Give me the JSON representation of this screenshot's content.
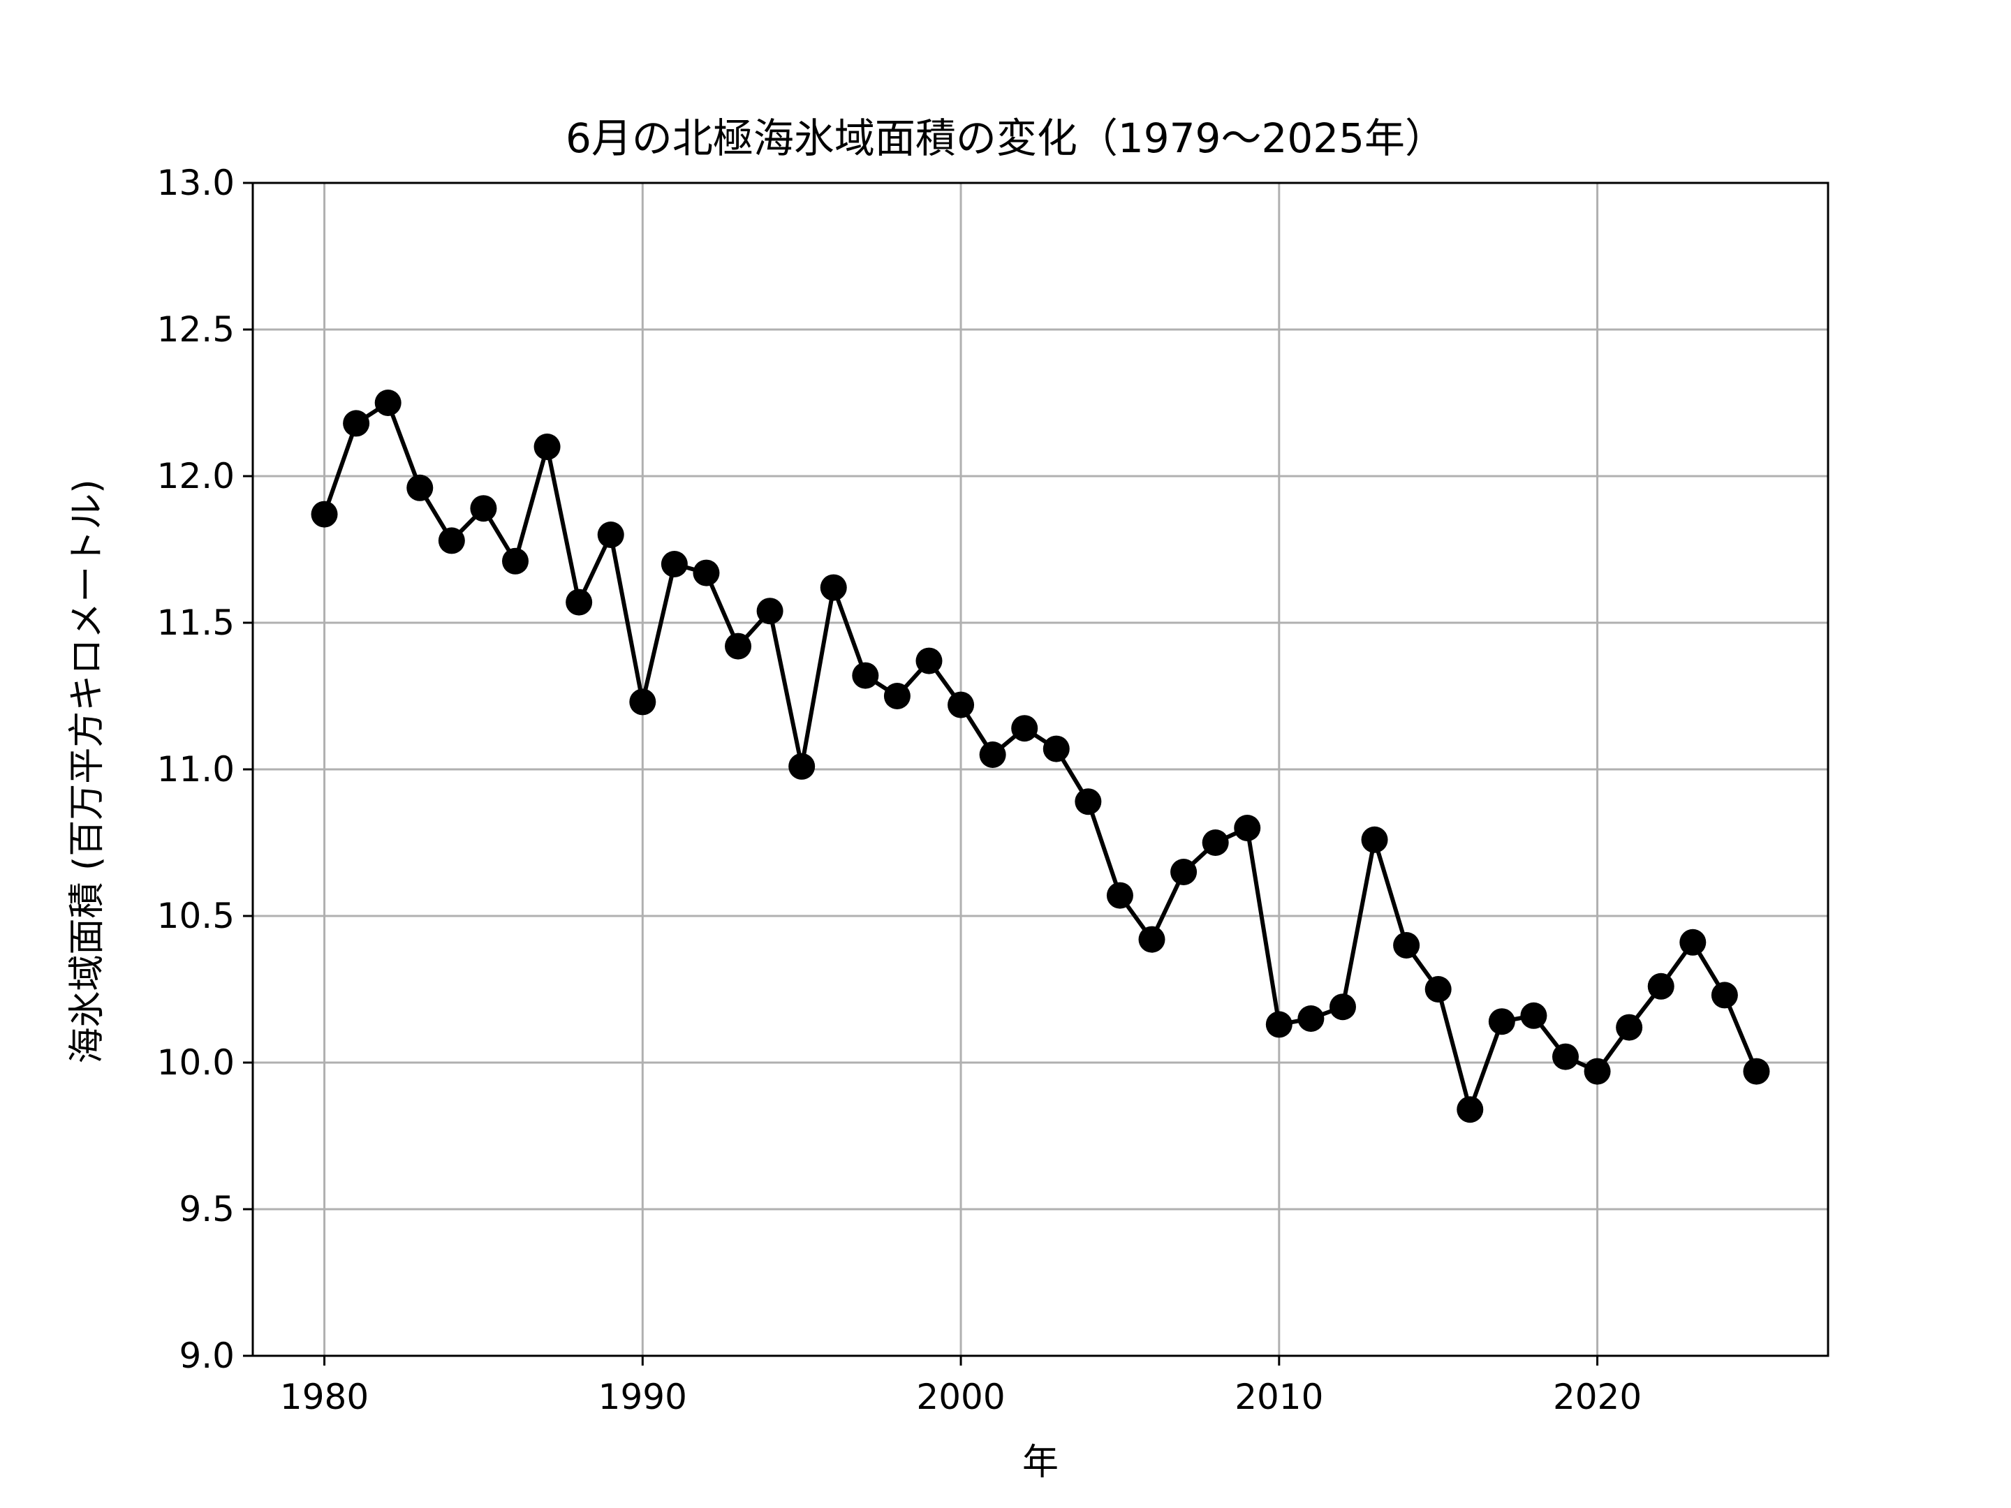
{
  "chart_data": {
    "type": "line",
    "title": "6月の北極海氷域面積の変化（1979〜2025年）",
    "xlabel": "年",
    "ylabel": "海氷域面積 (百万平方キロメートル)",
    "xlim": [
      1977.75,
      2027.25
    ],
    "ylim": [
      9.0,
      13.0
    ],
    "xticks": [
      1980,
      1990,
      2000,
      2010,
      2020
    ],
    "yticks": [
      9.0,
      9.5,
      10.0,
      10.5,
      11.0,
      11.5,
      12.0,
      12.5,
      13.0
    ],
    "ytick_labels": [
      "9.0",
      "9.5",
      "10.0",
      "10.5",
      "11.0",
      "11.5",
      "12.0",
      "12.5",
      "13.0"
    ],
    "grid": true,
    "series": [
      {
        "color": "#000000",
        "marker": "circle",
        "x": [
          1980,
          1981,
          1982,
          1983,
          1984,
          1985,
          1986,
          1987,
          1988,
          1989,
          1990,
          1991,
          1992,
          1993,
          1994,
          1995,
          1996,
          1997,
          1998,
          1999,
          2000,
          2001,
          2002,
          2003,
          2004,
          2005,
          2006,
          2007,
          2008,
          2009,
          2010,
          2011,
          2012,
          2013,
          2014,
          2015,
          2016,
          2017,
          2018,
          2019,
          2020,
          2021,
          2022,
          2023,
          2024,
          2025
        ],
        "y": [
          11.87,
          12.18,
          12.25,
          11.96,
          11.78,
          11.89,
          11.71,
          12.1,
          11.57,
          11.8,
          11.23,
          11.7,
          11.67,
          11.42,
          11.54,
          11.01,
          11.62,
          11.32,
          11.25,
          11.37,
          11.22,
          11.05,
          11.14,
          11.07,
          10.89,
          10.57,
          10.42,
          10.65,
          10.75,
          10.8,
          10.13,
          10.15,
          10.19,
          10.76,
          10.4,
          10.25,
          9.84,
          10.14,
          10.16,
          10.02,
          9.97,
          10.12,
          10.26,
          10.41,
          10.23,
          9.97
        ]
      }
    ]
  }
}
